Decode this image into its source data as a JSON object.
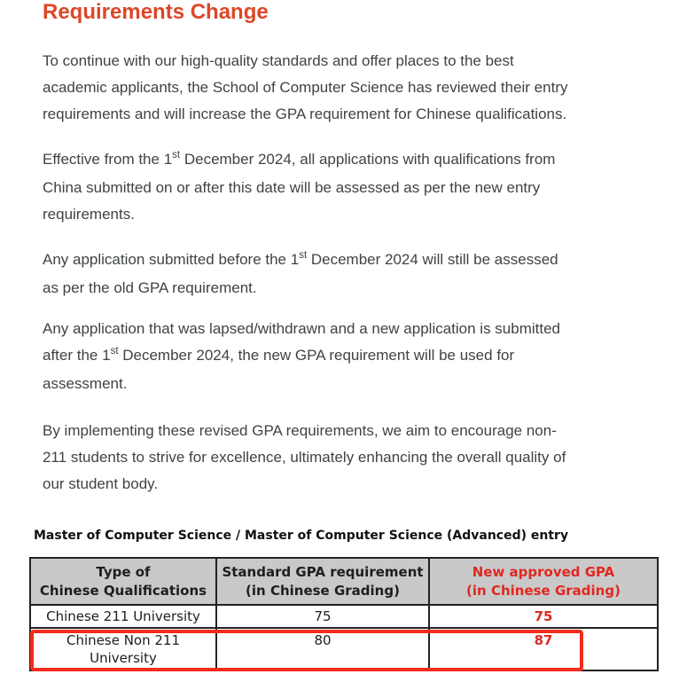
{
  "title": {
    "text": "Requirements Change"
  },
  "colors": {
    "accent": "#dd4727",
    "table_red": "#e02820",
    "highlight_box_red": "#f32b1e",
    "header_bg": "#c9c9c9",
    "body_text": "#3f4345"
  },
  "paragraphs": [
    {
      "lines": [
        [
          {
            "t": "To continue with our high-quality standards and offer places to the best"
          }
        ],
        [
          {
            "t": "academic applicants, the School of Computer Science has reviewed their entry"
          }
        ],
        [
          {
            "t": "requirements and will increase the GPA requirement for Chinese qualifications."
          }
        ]
      ]
    },
    {
      "lines": [
        [
          {
            "t": "Effective from the 1"
          },
          {
            "s": "st"
          },
          {
            "t": " December 2024, all applications with qualifications from"
          }
        ],
        [
          {
            "t": "China submitted on or after this date will be assessed as per the new entry"
          }
        ],
        [
          {
            "t": "requirements."
          }
        ]
      ]
    },
    {
      "lines": [
        [
          {
            "t": "Any application submitted before the 1"
          },
          {
            "s": "st"
          },
          {
            "t": " December 2024 will still be assessed"
          }
        ],
        [
          {
            "t": "as per the old GPA requirement."
          }
        ]
      ]
    },
    {
      "lines": [
        [
          {
            "t": "Any application that was lapsed/withdrawn and a new application is submitted"
          }
        ],
        [
          {
            "t": "after the 1"
          },
          {
            "s": "st"
          },
          {
            "t": " December 2024, the new GPA requirement will be used for"
          }
        ],
        [
          {
            "t": "assessment."
          }
        ]
      ]
    },
    {
      "lines": [
        [
          {
            "t": "By implementing these revised GPA requirements, we aim to encourage non-"
          }
        ],
        [
          {
            "t": "211 students to strive for excellence, ultimately enhancing the overall quality of"
          }
        ],
        [
          {
            "t": "our student body."
          }
        ]
      ]
    }
  ],
  "table": {
    "caption": "Master of Computer Science / Master of Computer Science (Advanced) entry",
    "header": [
      {
        "lines": [
          "Type of",
          "Chinese Qualifications"
        ],
        "red": false
      },
      {
        "lines": [
          "Standard GPA requirement",
          "(in Chinese Grading)"
        ],
        "red": false
      },
      {
        "lines": [
          "New approved GPA",
          "(in Chinese Grading)"
        ],
        "red": true
      }
    ],
    "rows": [
      {
        "highlighted": false,
        "cells": [
          {
            "lines": [
              "Chinese 211 University"
            ],
            "red": false
          },
          {
            "lines": [
              "75"
            ],
            "red": false
          },
          {
            "lines": [
              "75"
            ],
            "red": true
          }
        ]
      },
      {
        "highlighted": true,
        "cells": [
          {
            "lines": [
              "Chinese Non 211",
              "University"
            ],
            "red": false
          },
          {
            "lines": [
              "80"
            ],
            "red": false
          },
          {
            "lines": [
              "87"
            ],
            "red": true
          }
        ]
      }
    ]
  }
}
